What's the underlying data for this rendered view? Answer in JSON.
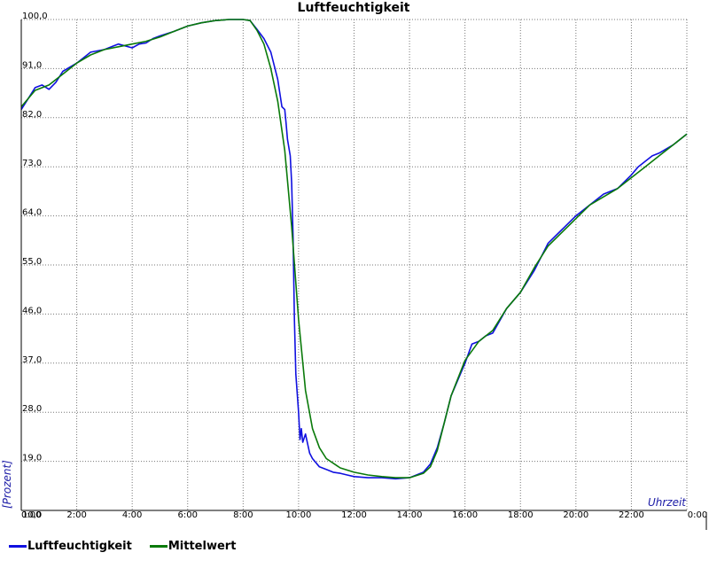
{
  "chart_data": {
    "type": "line",
    "title": "Luftfeuchtigkeit",
    "xlabel": "Uhrzeit",
    "ylabel": "[Prozent]",
    "xlim": [
      0,
      24
    ],
    "ylim": [
      10,
      100
    ],
    "grid": true,
    "legend_position": "bottom-left",
    "x_ticks": [
      "0:00",
      "2:00",
      "4:00",
      "6:00",
      "8:00",
      "10:00",
      "12:00",
      "14:00",
      "16:00",
      "18:00",
      "20:00",
      "22:00",
      "0:00"
    ],
    "y_ticks": [
      "10,0",
      "19,0",
      "28,0",
      "37,0",
      "46,0",
      "55,0",
      "64,0",
      "73,0",
      "82,0",
      "91,0",
      "100,0"
    ],
    "colors": {
      "Luftfeuchtigkeit": "#1010e0",
      "Mittelwert": "#0a7a0a"
    },
    "series": [
      {
        "name": "Luftfeuchtigkeit",
        "x": [
          0,
          0.25,
          0.5,
          0.75,
          1.0,
          1.25,
          1.5,
          2.0,
          2.25,
          2.5,
          3.0,
          3.5,
          4.0,
          4.25,
          4.5,
          4.75,
          5.0,
          5.5,
          6.0,
          6.5,
          7.0,
          7.5,
          8.0,
          8.25,
          8.5,
          8.75,
          9.0,
          9.25,
          9.4,
          9.5,
          9.55,
          9.6,
          9.7,
          9.75,
          9.8,
          9.85,
          9.9,
          10.0,
          10.05,
          10.1,
          10.15,
          10.25,
          10.4,
          10.5,
          10.75,
          11.0,
          11.25,
          11.5,
          11.75,
          12.0,
          12.5,
          13.0,
          13.5,
          14.0,
          14.5,
          14.75,
          15.0,
          15.25,
          15.5,
          16.0,
          16.25,
          16.5,
          16.75,
          17.0,
          17.5,
          18.0,
          18.5,
          19.0,
          19.5,
          20.0,
          20.5,
          21.0,
          21.5,
          22.0,
          22.25,
          22.5,
          22.75,
          23.0,
          23.5,
          24.0
        ],
        "y": [
          83.5,
          85.5,
          87.5,
          88.0,
          87.2,
          88.5,
          90.5,
          92.0,
          93.0,
          94.0,
          94.5,
          95.5,
          94.8,
          95.5,
          95.7,
          96.5,
          97.0,
          97.8,
          98.8,
          99.4,
          99.8,
          100.0,
          100.0,
          99.8,
          98.2,
          96.5,
          94.0,
          89.0,
          84.0,
          83.5,
          81.0,
          78.0,
          75.0,
          70.0,
          60.0,
          45.0,
          35.0,
          28.0,
          23.0,
          25.0,
          22.5,
          24.0,
          20.5,
          19.5,
          18.0,
          17.5,
          17.0,
          16.8,
          16.5,
          16.2,
          16.0,
          16.0,
          15.8,
          16.0,
          17.0,
          18.5,
          21.5,
          26.0,
          31.0,
          37.0,
          40.5,
          41.0,
          42.0,
          42.5,
          47.0,
          50.0,
          54.0,
          59.0,
          61.5,
          64.0,
          66.0,
          68.0,
          69.0,
          71.5,
          73.0,
          74.0,
          75.0,
          75.5,
          77.0,
          79.0
        ]
      },
      {
        "name": "Mittelwert",
        "x": [
          0,
          0.5,
          1.0,
          1.5,
          2.0,
          2.5,
          3.0,
          3.5,
          4.0,
          4.5,
          5.0,
          5.5,
          6.0,
          6.5,
          7.0,
          7.5,
          8.0,
          8.25,
          8.5,
          8.75,
          9.0,
          9.25,
          9.5,
          9.75,
          10.0,
          10.25,
          10.5,
          10.75,
          11.0,
          11.5,
          12.0,
          12.5,
          13.0,
          13.5,
          14.0,
          14.5,
          14.75,
          15.0,
          15.25,
          15.5,
          16.0,
          16.5,
          17.0,
          17.5,
          18.0,
          18.5,
          19.0,
          19.5,
          20.0,
          20.5,
          21.0,
          21.5,
          22.0,
          22.5,
          23.0,
          23.5,
          24.0
        ],
        "y": [
          84.0,
          87.0,
          88.0,
          90.0,
          92.0,
          93.5,
          94.5,
          95.0,
          95.5,
          96.0,
          96.8,
          97.8,
          98.8,
          99.4,
          99.8,
          100.0,
          100.0,
          99.8,
          98.0,
          95.5,
          91.0,
          85.0,
          76.0,
          62.0,
          45.0,
          32.0,
          25.0,
          21.5,
          19.5,
          17.8,
          17.0,
          16.5,
          16.2,
          16.0,
          16.0,
          16.8,
          18.0,
          21.0,
          26.0,
          31.0,
          37.5,
          41.0,
          43.0,
          47.0,
          50.0,
          54.5,
          58.5,
          61.0,
          63.5,
          66.0,
          67.5,
          69.0,
          71.0,
          73.0,
          75.0,
          77.0,
          79.0
        ]
      }
    ]
  }
}
